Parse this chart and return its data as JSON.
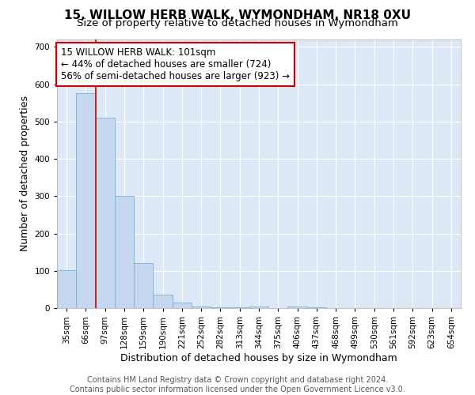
{
  "title": "15, WILLOW HERB WALK, WYMONDHAM, NR18 0XU",
  "subtitle": "Size of property relative to detached houses in Wymondham",
  "xlabel": "Distribution of detached houses by size in Wymondham",
  "ylabel": "Number of detached properties",
  "categories": [
    "35sqm",
    "66sqm",
    "97sqm",
    "128sqm",
    "159sqm",
    "190sqm",
    "221sqm",
    "252sqm",
    "282sqm",
    "313sqm",
    "344sqm",
    "375sqm",
    "406sqm",
    "437sqm",
    "468sqm",
    "499sqm",
    "530sqm",
    "561sqm",
    "592sqm",
    "623sqm",
    "654sqm"
  ],
  "values": [
    101,
    577,
    510,
    300,
    120,
    36,
    14,
    5,
    2,
    2,
    5,
    0,
    5,
    3,
    0,
    0,
    0,
    0,
    0,
    0,
    0
  ],
  "bar_color": "#c5d8ef",
  "bar_edge_color": "#7bafd4",
  "vline_color": "#cc0000",
  "vline_x": 1.5,
  "annotation_text": "15 WILLOW HERB WALK: 101sqm\n← 44% of detached houses are smaller (724)\n56% of semi-detached houses are larger (923) →",
  "annotation_box_color": "white",
  "annotation_box_edge_color": "#cc0000",
  "ylim": [
    0,
    720
  ],
  "yticks": [
    0,
    100,
    200,
    300,
    400,
    500,
    600,
    700
  ],
  "footer": "Contains HM Land Registry data © Crown copyright and database right 2024.\nContains public sector information licensed under the Open Government Licence v3.0.",
  "plot_bg_color": "#dce8f5",
  "title_fontsize": 11,
  "subtitle_fontsize": 9.5,
  "annotation_fontsize": 8.5,
  "axis_label_fontsize": 9,
  "tick_fontsize": 7.5,
  "footer_fontsize": 7
}
